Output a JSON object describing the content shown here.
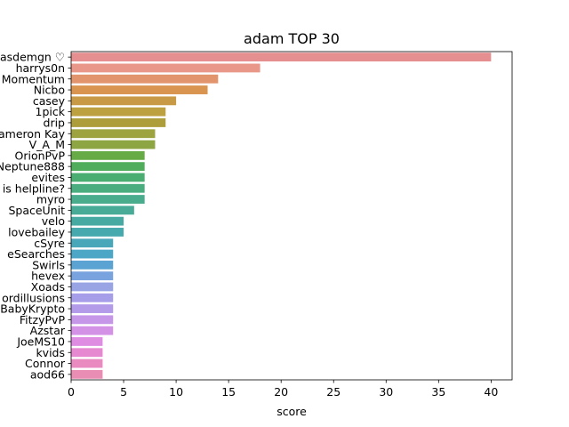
{
  "chart_data": {
    "type": "bar",
    "orientation": "horizontal",
    "title": "adam TOP 30",
    "xlabel": "score",
    "ylabel": "",
    "xlim": [
      0,
      42
    ],
    "xticks": [
      0,
      5,
      10,
      15,
      20,
      25,
      30,
      35,
      40
    ],
    "grid": false,
    "legend": "none",
    "categories": [
      "asdemgn ♡",
      "harrys0n",
      "Momentum",
      "Nicbo",
      "casey",
      "1pick",
      "drip",
      "Cameron Kay",
      "V_A_M",
      "OrionPvP",
      "Neptune888",
      "evites",
      "is helpline?",
      "myro",
      "SpaceUnit",
      "velo",
      "lovebailey",
      "cSyre",
      "eSearches",
      "Swirls",
      "hevex",
      "Xoads",
      "ordillusions",
      "BabyKrypto",
      "FitzyPvP",
      "Azstar",
      "JoeMS10",
      "kvids",
      "Connor",
      "aod66"
    ],
    "values": [
      40,
      18,
      14,
      13,
      10,
      9,
      9,
      8,
      8,
      7,
      7,
      7,
      7,
      7,
      6,
      5,
      5,
      4,
      4,
      4,
      4,
      4,
      4,
      4,
      4,
      4,
      3,
      3,
      3,
      3
    ],
    "colors": [
      "#e58f90",
      "#e99788",
      "#e2956d",
      "#d99450",
      "#c99a45",
      "#bda03f",
      "#ad9e3b",
      "#9da33f",
      "#8ea543",
      "#66ab45",
      "#4fad5b",
      "#4aad72",
      "#49ad80",
      "#48ac8d",
      "#47ab97",
      "#46aaa3",
      "#46a9ad",
      "#49a7ba",
      "#4ca6c6",
      "#5aa3d2",
      "#79a3df",
      "#99a4e5",
      "#a69ee8",
      "#b39be9",
      "#c697e8",
      "#d492e6",
      "#df8de3",
      "#e689d0",
      "#e98bc1",
      "#ea8db4"
    ]
  }
}
